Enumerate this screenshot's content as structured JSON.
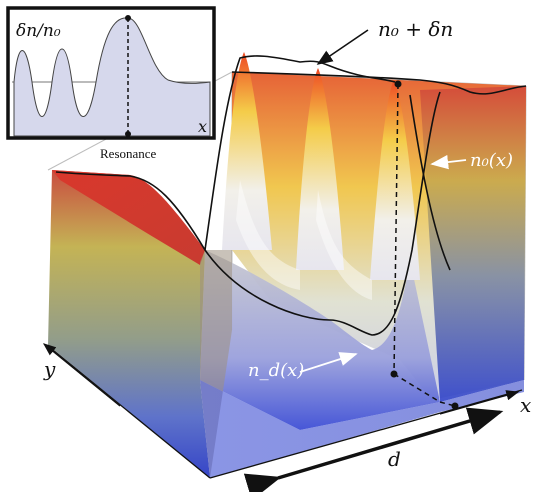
{
  "inset": {
    "y_label": "δn/n₀",
    "x_label": "x",
    "marker_label": "Resonance"
  },
  "labels": {
    "top": "n₀ + δn",
    "right": "n₀(x)",
    "defect": "n_d(x)",
    "axis_x": "x",
    "axis_y": "y",
    "distance": "d"
  },
  "colors": {
    "inset_fill": "#d6d8ec",
    "inset_frame": "#111111",
    "surface_hot": "#e8391f",
    "surface_warm": "#f5c24a",
    "surface_mid": "#c9c7c9",
    "surface_cool": "#3a4bd1",
    "curve": "#111111"
  }
}
